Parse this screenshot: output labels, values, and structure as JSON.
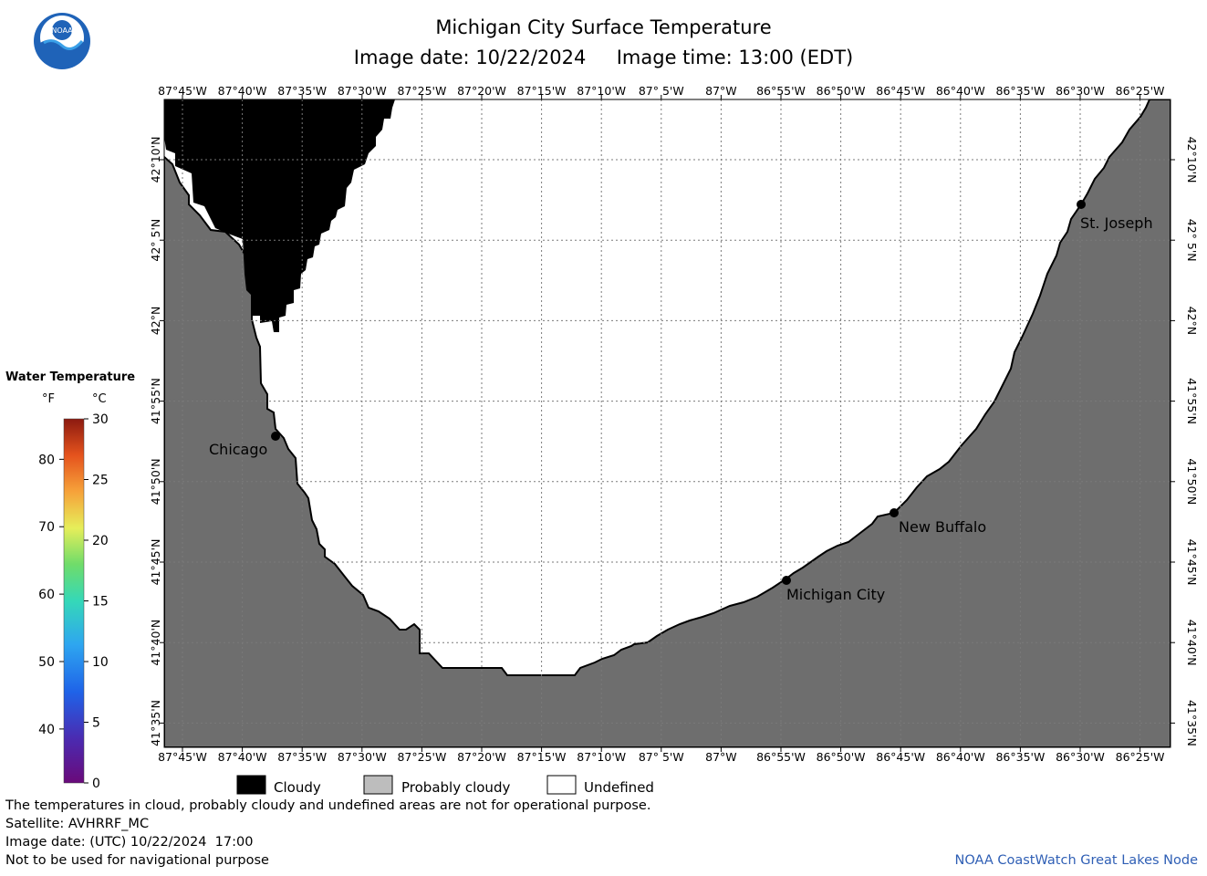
{
  "header": {
    "title": "Michigan City Surface Temperature",
    "subtitle": "Image date: 10/22/2024     Image time: 13:00 (EDT)"
  },
  "logo": {
    "text": "NOAA"
  },
  "map": {
    "lon_labels": [
      "87°45'W",
      "87°40'W",
      "87°35'W",
      "87°30'W",
      "87°25'W",
      "87°20'W",
      "87°15'W",
      "87°10'W",
      "87° 5'W",
      "87°W",
      "86°55'W",
      "86°50'W",
      "86°45'W",
      "86°40'W",
      "86°35'W",
      "86°30'W",
      "86°25'W"
    ],
    "lat_labels": [
      "42°10'N",
      "42° 5'N",
      "42°N",
      "41°55'N",
      "41°50'N",
      "41°45'N",
      "41°40'N",
      "41°35'N"
    ],
    "places": [
      {
        "name": "Chicago"
      },
      {
        "name": "St. Joseph"
      },
      {
        "name": "New Buffalo"
      },
      {
        "name": "Michigan City"
      }
    ],
    "colors": {
      "land": "#6e6e6e",
      "cloud": "#000000",
      "water": "#ffffff",
      "grid": "#808080"
    }
  },
  "legend": {
    "title": "Water Temperature",
    "unit_f": "°F",
    "unit_c": "°C",
    "f_ticks": [
      "80",
      "70",
      "60",
      "50",
      "40"
    ],
    "c_ticks": [
      "30",
      "25",
      "20",
      "15",
      "10",
      "5",
      "0"
    ]
  },
  "key": {
    "items": [
      {
        "label": "Cloudy",
        "color": "#000000"
      },
      {
        "label": "Probably cloudy",
        "color": "#bdbdbd"
      },
      {
        "label": "Undefined",
        "color": "#ffffff"
      }
    ]
  },
  "footer": {
    "line1": "The temperatures in cloud, probably cloudy and undefined areas are not for operational purpose.",
    "line2": "Satellite: AVHRRF_MC",
    "line3": "Image date: (UTC) 10/22/2024  17:00",
    "line4": "Not to be used for navigational purpose",
    "credit": "NOAA CoastWatch Great Lakes Node"
  }
}
